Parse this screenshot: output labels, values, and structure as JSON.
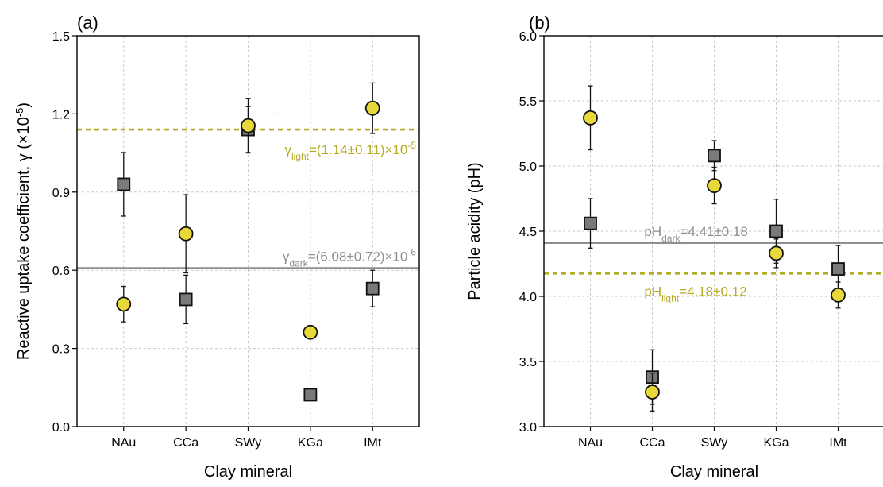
{
  "colors": {
    "light": "#e8d83a",
    "light_line": "#b5ab22",
    "dark": "#7a7a7a",
    "dark_line": "#8f8f8f",
    "marker_edge": "#111111",
    "grid": "#c8c8c8"
  },
  "chart_data": [
    {
      "type": "scatter",
      "panel_label": "(a)",
      "xlabel": "Clay mineral",
      "ylabel": "Reactive uptake coefficient, γ (×10",
      "ylabel_sup": "-5",
      "ylabel_close": ")",
      "ylim": [
        0,
        1.5
      ],
      "yticks": [
        "0.0",
        "0.3",
        "0.6",
        "0.9",
        "1.2",
        "1.5"
      ],
      "grid": true,
      "categories": [
        "NAu",
        "CCa",
        "SWy",
        "KGa",
        "IMt"
      ],
      "series": [
        {
          "key": "light",
          "marker": "circle",
          "values": [
            0.47,
            0.74,
            1.155,
            0.362,
            1.222
          ],
          "errors": [
            0.068,
            0.15,
            0.105,
            0.022,
            0.097
          ]
        },
        {
          "key": "dark",
          "marker": "square",
          "values": [
            0.93,
            0.488,
            1.14,
            0.122,
            0.53
          ],
          "errors": [
            0.122,
            0.093,
            0.088,
            0.0,
            0.07
          ]
        }
      ],
      "reference_lines": [
        {
          "key": "light",
          "style": "dashed",
          "value": 1.14,
          "label_prefix": "γ",
          "label_sub": "light",
          "label_body": "=(1.14±0.11)×10",
          "label_sup": "-5",
          "label_anchor": "right-below"
        },
        {
          "key": "dark",
          "style": "solid",
          "value": 0.608,
          "label_prefix": "γ",
          "label_sub": "dark",
          "label_body": "=(6.08±0.72)×10",
          "label_sup": "-6",
          "label_anchor": "right-above"
        }
      ]
    },
    {
      "type": "scatter",
      "panel_label": "(b)",
      "xlabel": "Clay mineral",
      "ylabel": "Particle acidity (pH)",
      "ylabel_sup": "",
      "ylabel_close": "",
      "ylim": [
        3.0,
        6.0
      ],
      "yticks": [
        "3.0",
        "3.5",
        "4.0",
        "4.5",
        "5.0",
        "5.5",
        "6.0"
      ],
      "grid": true,
      "categories": [
        "NAu",
        "CCa",
        "SWy",
        "KGa",
        "IMt"
      ],
      "series": [
        {
          "key": "light",
          "marker": "circle",
          "values": [
            5.37,
            3.265,
            4.85,
            4.33,
            4.01
          ],
          "errors": [
            0.245,
            0.145,
            0.14,
            0.11,
            0.1
          ]
        },
        {
          "key": "dark",
          "marker": "square",
          "values": [
            4.56,
            3.38,
            5.08,
            4.5,
            4.21
          ],
          "errors": [
            0.19,
            0.21,
            0.115,
            0.245,
            0.18
          ]
        }
      ],
      "reference_lines": [
        {
          "key": "dark",
          "style": "solid",
          "value": 4.41,
          "label_prefix": "pH",
          "label_sub": "dark",
          "label_body": "=4.41±0.18",
          "label_sup": "",
          "label_anchor": "left-above"
        },
        {
          "key": "light",
          "style": "dashed",
          "value": 4.175,
          "label_prefix": "pH",
          "label_sub": "light",
          "label_body": "=4.18±0.12",
          "label_sup": "",
          "label_anchor": "left-below"
        }
      ]
    }
  ]
}
